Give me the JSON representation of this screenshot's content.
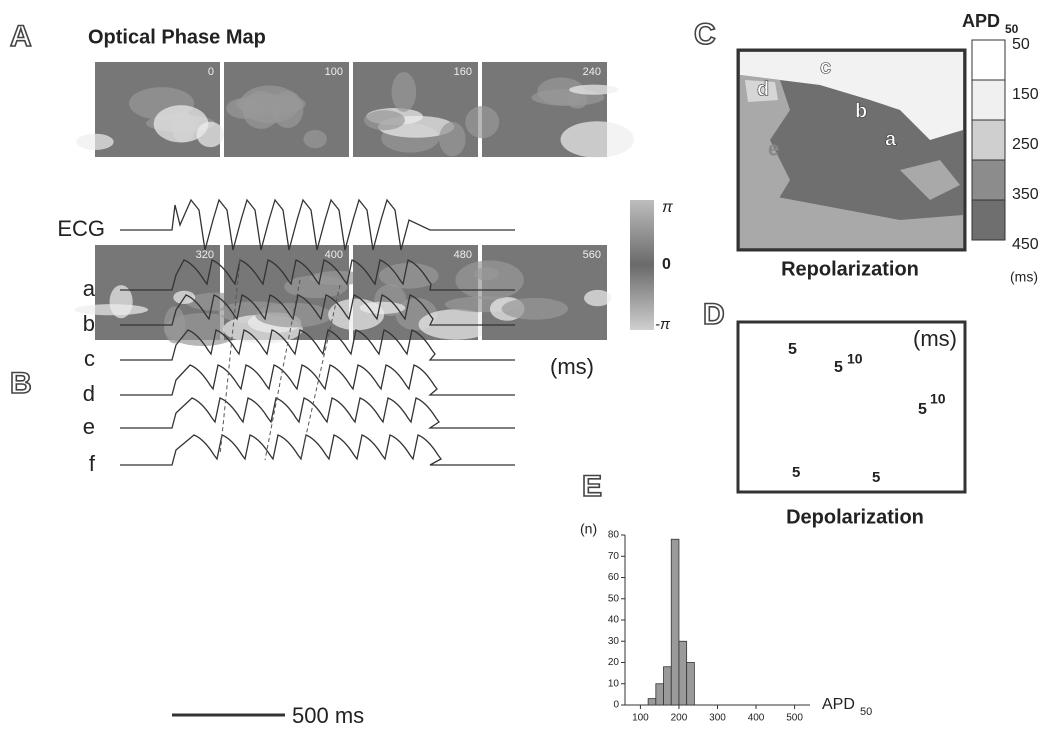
{
  "panel_a": {
    "letter": "A",
    "title": "Optical Phase Map",
    "frames": [
      "0",
      "100",
      "160",
      "240",
      "320",
      "400",
      "480",
      "560"
    ],
    "unit": "(ms)",
    "colorbar": {
      "top": "π",
      "mid": "0",
      "bottom": "-π"
    }
  },
  "panel_b": {
    "letter": "B",
    "traces": [
      "ECG",
      "a",
      "b",
      "c",
      "d",
      "e",
      "f"
    ],
    "scale": "500 ms"
  },
  "panel_c": {
    "letter": "C",
    "title": "APD",
    "title_sub": "50",
    "legend": [
      "50",
      "150",
      "250",
      "350",
      "450"
    ],
    "unit": "(ms)",
    "caption": "Repolarization",
    "regions": [
      "a",
      "b",
      "c",
      "d",
      "e"
    ]
  },
  "panel_d": {
    "letter": "D",
    "unit": "(ms)",
    "caption": "Depolarization",
    "labels": [
      "5",
      "5",
      "10",
      "5",
      "10",
      "5",
      "5"
    ]
  },
  "chart_data": {
    "type": "histogram",
    "letter": "E",
    "ylabel": "(n)",
    "xlabel": "APD",
    "xlabel_sub": "50",
    "bins": [
      120,
      140,
      160,
      180,
      200,
      220,
      240
    ],
    "values": [
      3,
      10,
      18,
      78,
      30,
      20
    ],
    "xlim": [
      60,
      540
    ],
    "xticks": [
      100,
      200,
      300,
      400,
      500
    ],
    "ylim": [
      0,
      80
    ],
    "yticks": [
      0,
      10,
      20,
      30,
      40,
      50,
      60,
      70,
      80
    ],
    "color": "#9a9a9a"
  }
}
